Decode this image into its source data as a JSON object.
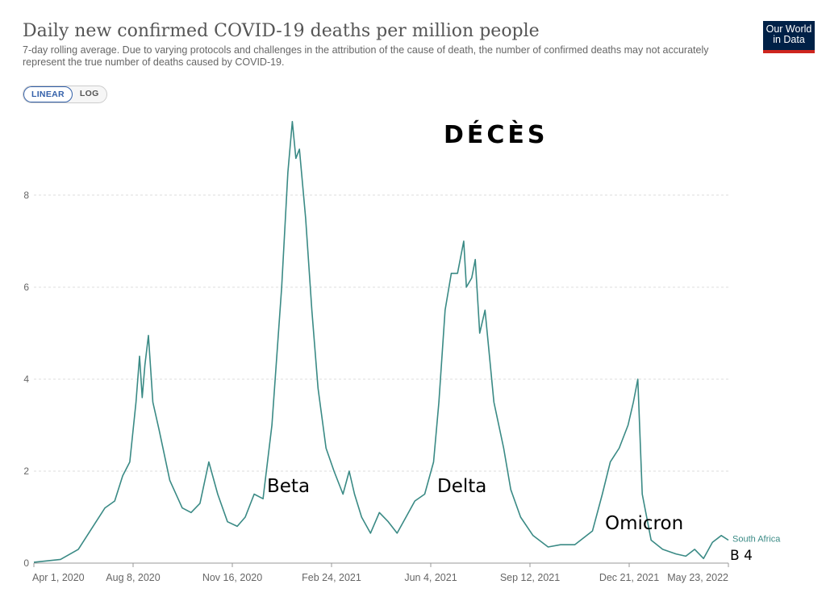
{
  "header": {
    "title": "Daily new confirmed COVID-19 deaths per million people",
    "subtitle": "7-day rolling average. Due to varying protocols and challenges in the attribution of the cause of death, the number of confirmed deaths may not accurately represent the true number of deaths caused by COVID-19.",
    "logo_line1": "Our World",
    "logo_line2": "in Data"
  },
  "controls": {
    "linear_label": "LINEAR",
    "log_label": "LOG",
    "active": "LINEAR"
  },
  "annotations": {
    "deces": "DÉCÈS",
    "beta": "Beta",
    "delta": "Delta",
    "omicron": "Omicron",
    "b4": "B 4"
  },
  "colors": {
    "series": "#3a8a85",
    "grid": "#dddddd",
    "axis_text": "#666666",
    "active_toggle": "#3360a9",
    "logo_bg": "#002147",
    "logo_accent": "#ce261e"
  },
  "chart_data": {
    "type": "line",
    "title": "Daily new confirmed COVID-19 deaths per million people",
    "xlabel": "",
    "ylabel": "",
    "y_ticks": [
      0,
      2,
      4,
      6,
      8
    ],
    "ylim": [
      0,
      9.7
    ],
    "x_tick_labels": [
      "Apr 1, 2020",
      "Aug 8, 2020",
      "Nov 16, 2020",
      "Feb 24, 2021",
      "Jun 4, 2021",
      "Sep 12, 2021",
      "Dec 21, 2021",
      "May 23, 2022"
    ],
    "xlim": [
      "2020-04-01",
      "2022-05-23"
    ],
    "grid": true,
    "series": [
      {
        "name": "South Africa",
        "points": [
          [
            "2020-04-01",
            0.02
          ],
          [
            "2020-05-01",
            0.08
          ],
          [
            "2020-05-21",
            0.3
          ],
          [
            "2020-06-10",
            0.9
          ],
          [
            "2020-06-20",
            1.2
          ],
          [
            "2020-07-01",
            1.35
          ],
          [
            "2020-07-10",
            1.9
          ],
          [
            "2020-07-18",
            2.2
          ],
          [
            "2020-07-25",
            3.5
          ],
          [
            "2020-07-29",
            4.5
          ],
          [
            "2020-08-01",
            3.6
          ],
          [
            "2020-08-04",
            4.3
          ],
          [
            "2020-08-08",
            4.95
          ],
          [
            "2020-08-13",
            3.5
          ],
          [
            "2020-08-20",
            2.9
          ],
          [
            "2020-09-01",
            1.8
          ],
          [
            "2020-09-15",
            1.2
          ],
          [
            "2020-09-25",
            1.1
          ],
          [
            "2020-10-05",
            1.3
          ],
          [
            "2020-10-15",
            2.2
          ],
          [
            "2020-10-25",
            1.5
          ],
          [
            "2020-11-05",
            0.9
          ],
          [
            "2020-11-16",
            0.8
          ],
          [
            "2020-11-25",
            1.0
          ],
          [
            "2020-12-05",
            1.5
          ],
          [
            "2020-12-15",
            1.4
          ],
          [
            "2020-12-25",
            3.0
          ],
          [
            "2021-01-05",
            6.0
          ],
          [
            "2021-01-12",
            8.5
          ],
          [
            "2021-01-17",
            9.6
          ],
          [
            "2021-01-21",
            8.8
          ],
          [
            "2021-01-25",
            9.0
          ],
          [
            "2021-02-01",
            7.5
          ],
          [
            "2021-02-08",
            5.5
          ],
          [
            "2021-02-15",
            3.8
          ],
          [
            "2021-02-24",
            2.5
          ],
          [
            "2021-03-05",
            2.0
          ],
          [
            "2021-03-15",
            1.5
          ],
          [
            "2021-03-22",
            2.0
          ],
          [
            "2021-03-28",
            1.5
          ],
          [
            "2021-04-05",
            1.0
          ],
          [
            "2021-04-15",
            0.65
          ],
          [
            "2021-04-25",
            1.1
          ],
          [
            "2021-05-05",
            0.9
          ],
          [
            "2021-05-15",
            0.65
          ],
          [
            "2021-05-25",
            1.0
          ],
          [
            "2021-06-04",
            1.35
          ],
          [
            "2021-06-15",
            1.5
          ],
          [
            "2021-06-25",
            2.2
          ],
          [
            "2021-07-01",
            3.5
          ],
          [
            "2021-07-08",
            5.5
          ],
          [
            "2021-07-15",
            6.3
          ],
          [
            "2021-07-22",
            6.3
          ],
          [
            "2021-07-29",
            7.0
          ],
          [
            "2021-08-01",
            6.0
          ],
          [
            "2021-08-07",
            6.2
          ],
          [
            "2021-08-11",
            6.6
          ],
          [
            "2021-08-16",
            5.0
          ],
          [
            "2021-08-22",
            5.5
          ],
          [
            "2021-09-01",
            3.5
          ],
          [
            "2021-09-12",
            2.5
          ],
          [
            "2021-09-20",
            1.6
          ],
          [
            "2021-10-01",
            1.0
          ],
          [
            "2021-10-15",
            0.6
          ],
          [
            "2021-11-01",
            0.35
          ],
          [
            "2021-11-15",
            0.4
          ],
          [
            "2021-12-01",
            0.4
          ],
          [
            "2021-12-21",
            0.7
          ],
          [
            "2022-01-01",
            1.5
          ],
          [
            "2022-01-10",
            2.2
          ],
          [
            "2022-01-20",
            2.5
          ],
          [
            "2022-01-30",
            3.0
          ],
          [
            "2022-02-05",
            3.5
          ],
          [
            "2022-02-10",
            4.0
          ],
          [
            "2022-02-15",
            1.5
          ],
          [
            "2022-02-25",
            0.5
          ],
          [
            "2022-03-10",
            0.3
          ],
          [
            "2022-03-25",
            0.2
          ],
          [
            "2022-04-05",
            0.15
          ],
          [
            "2022-04-15",
            0.3
          ],
          [
            "2022-04-25",
            0.1
          ],
          [
            "2022-05-05",
            0.45
          ],
          [
            "2022-05-15",
            0.6
          ],
          [
            "2022-05-23",
            0.5
          ]
        ]
      }
    ]
  }
}
